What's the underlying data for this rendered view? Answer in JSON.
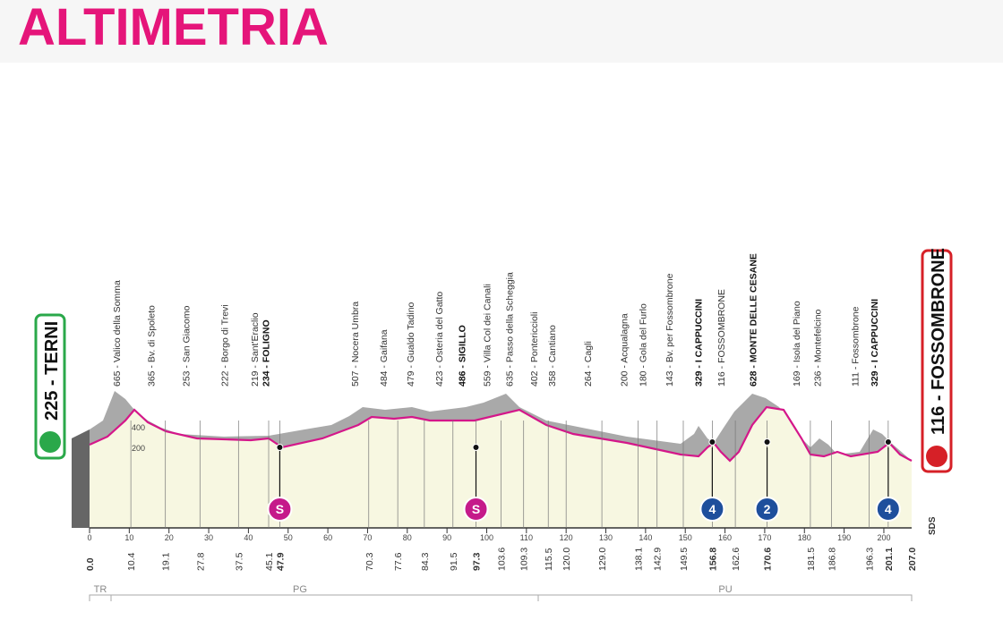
{
  "title": "ALTIMETRIA",
  "start": {
    "label": "225 - TERNI"
  },
  "finish": {
    "label": "116 - FOSSOMBRONE"
  },
  "altitude_scale": [
    "200",
    "400"
  ],
  "waypoints": [
    {
      "label": "665 - Valico della Somma",
      "km": "10.4"
    },
    {
      "label": "365 - Bv. di Spoleto",
      "km": "19.1"
    },
    {
      "label": "253 - San Giacomo",
      "km": "27.8"
    },
    {
      "label": "222 - Borgo di Trevi",
      "km": "37.5"
    },
    {
      "label": "219 - Sant'Eraclio",
      "km": "45.1"
    },
    {
      "label": "234 - FOLIGNO",
      "km": "47.9",
      "bold": true
    },
    {
      "label": "507 - Nocera Umbra",
      "km": "70.3"
    },
    {
      "label": "484 - Gaifana",
      "km": "77.6"
    },
    {
      "label": "479 - Gualdo Tadino",
      "km": "84.3"
    },
    {
      "label": "423 - Osteria del Gatto",
      "km": "91.5"
    },
    {
      "label": "486 - SIGILLO",
      "km": "97.3",
      "bold": true
    },
    {
      "label": "559 - Villa Col dei Canali",
      "km": "103.6"
    },
    {
      "label": "635 - Passo della Scheggia",
      "km": "109.3"
    },
    {
      "label": "402 - Pontericcioli",
      "km": "115.5"
    },
    {
      "label": "358 - Cantiano",
      "km": "120.0"
    },
    {
      "label": "264 - Cagli",
      "km": "129.0"
    },
    {
      "label": "200 - Acqualagna",
      "km": "138.1"
    },
    {
      "label": "180 - Gola del Furlo",
      "km": "142.9"
    },
    {
      "label": "143 - Bv. per Fossombrone",
      "km": "149.5"
    },
    {
      "label": "329 - I CAPPUCCINI",
      "km": "156.8",
      "bold": true
    },
    {
      "label": "116 - FOSSOMBRONE",
      "km": "162.6"
    },
    {
      "label": "628 - MONTE DELLE CESANE",
      "km": "170.6",
      "bold": true
    },
    {
      "label": "169 - Isola del Piano",
      "km": "181.5"
    },
    {
      "label": "236 - Montefelcino",
      "km": "186.8"
    },
    {
      "label": "111 - Fossombrone",
      "km": "196.3"
    },
    {
      "label": "329 - I CAPPUCCINI",
      "km": "201.1",
      "bold": true
    }
  ],
  "start_km": "0.0",
  "finish_km": "207.0",
  "axis_ticks": [
    "0",
    "10",
    "20",
    "30",
    "40",
    "50",
    "60",
    "70",
    "80",
    "90",
    "100",
    "110",
    "120",
    "130",
    "140",
    "150",
    "160",
    "170",
    "180",
    "190",
    "200"
  ],
  "markers": [
    {
      "symbol": "S",
      "km": "47.9",
      "kind": "sprint"
    },
    {
      "symbol": "S",
      "km": "97.3",
      "kind": "sprint"
    },
    {
      "symbol": "4",
      "km": "156.8",
      "kind": "climb"
    },
    {
      "symbol": "2",
      "km": "170.6",
      "kind": "climb"
    },
    {
      "symbol": "4",
      "km": "201.1",
      "kind": "climb"
    }
  ],
  "regions": [
    "TR",
    "PG",
    "PU"
  ],
  "sponsor": "SDS"
}
